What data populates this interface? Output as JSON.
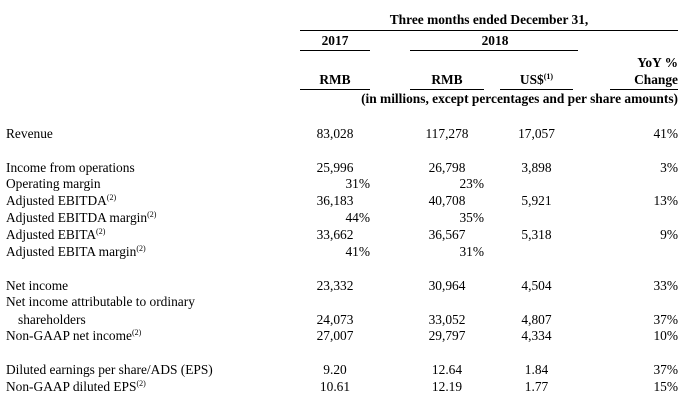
{
  "header": {
    "period_title": "Three months ended December 31,",
    "year_2017": "2017",
    "year_2018": "2018",
    "yoy_line1": "YoY %",
    "yoy_line2": "Change",
    "currency_rmb_1": "RMB",
    "currency_rmb_2": "RMB",
    "currency_usd": "US$",
    "currency_usd_note": "(1)",
    "units_note": "(in millions, except percentages and per share amounts)"
  },
  "rows": [
    {
      "label": "Revenue",
      "note": "",
      "v2017": "83,028",
      "v2018": "117,278",
      "usd": "17,057",
      "yoy": "41%"
    },
    {
      "label": "Income from operations",
      "note": "",
      "v2017": "25,996",
      "v2018": "26,798",
      "usd": "3,898",
      "yoy": "3%"
    },
    {
      "label": "Operating margin",
      "note": "",
      "v2017": "31%",
      "v2018": "23%",
      "usd": "",
      "yoy": ""
    },
    {
      "label": "Adjusted EBITDA",
      "note": "(2)",
      "v2017": "36,183",
      "v2018": "40,708",
      "usd": "5,921",
      "yoy": "13%"
    },
    {
      "label": "Adjusted EBITDA margin",
      "note": "(2)",
      "v2017": "44%",
      "v2018": "35%",
      "usd": "",
      "yoy": ""
    },
    {
      "label": "Adjusted EBITA",
      "note": "(2)",
      "v2017": "33,662",
      "v2018": "36,567",
      "usd": "5,318",
      "yoy": "9%"
    },
    {
      "label": "Adjusted EBITA margin",
      "note": "(2)",
      "v2017": "41%",
      "v2018": "31%",
      "usd": "",
      "yoy": ""
    },
    {
      "label": "Net income",
      "note": "",
      "v2017": "23,332",
      "v2018": "30,964",
      "usd": "4,504",
      "yoy": "33%"
    },
    {
      "label": "Net income attributable to ordinary",
      "note": "",
      "v2017": "",
      "v2018": "",
      "usd": "",
      "yoy": ""
    },
    {
      "label": "shareholders",
      "note": "",
      "v2017": "24,073",
      "v2018": "33,052",
      "usd": "4,807",
      "yoy": "37%"
    },
    {
      "label": "Non-GAAP net income",
      "note": "(2)",
      "v2017": "27,007",
      "v2018": "29,797",
      "usd": "4,334",
      "yoy": "10%"
    },
    {
      "label": "Diluted earnings per share/ADS (EPS)",
      "note": "",
      "v2017": "9.20",
      "v2018": "12.64",
      "usd": "1.84",
      "yoy": "37%"
    },
    {
      "label": "Non-GAAP diluted EPS",
      "note": "(2)",
      "v2017": "10.61",
      "v2018": "12.19",
      "usd": "1.77",
      "yoy": "15%"
    }
  ]
}
